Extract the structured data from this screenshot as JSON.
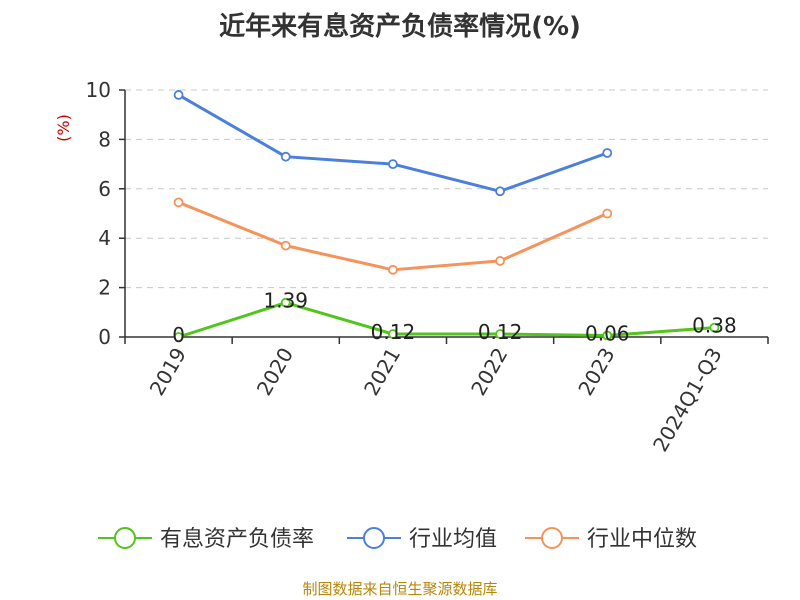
{
  "chart_data": {
    "type": "line",
    "title": "近年来有息资产负债率情况(%)",
    "ylabel": "(%)",
    "categories": [
      "2019",
      "2020",
      "2021",
      "2022",
      "2023",
      "2024Q1-Q3"
    ],
    "ylim": [
      0,
      10
    ],
    "yticks": [
      "0",
      "2",
      "4",
      "6",
      "8",
      "10"
    ],
    "grid": true,
    "legend_position": "bottom",
    "series": [
      {
        "name": "有息资产负债率",
        "color": "#52c41a",
        "values": [
          0,
          1.39,
          0.12,
          0.12,
          0.06,
          0.38
        ],
        "labels": [
          "0",
          "1.39",
          "0.12",
          "0.12",
          "0.06",
          "0.38"
        ]
      },
      {
        "name": "行业均值",
        "color": "#4a7fdc",
        "values": [
          9.8,
          7.3,
          7.0,
          5.9,
          7.45,
          null
        ]
      },
      {
        "name": "行业中位数",
        "color": "#f5935a",
        "values": [
          5.45,
          3.7,
          2.72,
          3.08,
          5.0,
          null
        ]
      }
    ]
  },
  "source": "制图数据来自恒生聚源数据库"
}
